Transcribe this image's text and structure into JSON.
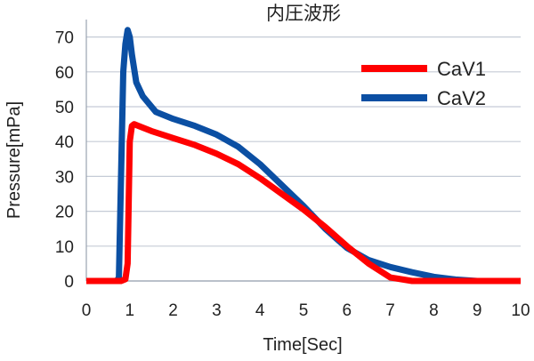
{
  "chart_data": {
    "type": "line",
    "title": "内圧波形",
    "xlabel": "Time[Sec]",
    "ylabel": "Pressure[mPa]",
    "xlim": [
      0,
      10
    ],
    "ylim": [
      0,
      75
    ],
    "x_ticks": [
      "0",
      "1",
      "2",
      "3",
      "4",
      "5",
      "6",
      "7",
      "8",
      "9",
      "10"
    ],
    "y_ticks": [
      "0",
      "10",
      "20",
      "30",
      "40",
      "50",
      "60",
      "70"
    ],
    "grid": "horizontal",
    "legend_position": "top-right",
    "series": [
      {
        "name": "CaV1",
        "color": "#ff0000",
        "x": [
          0,
          0.8,
          0.9,
          0.95,
          1.0,
          1.05,
          1.1,
          1.2,
          1.5,
          2,
          2.5,
          3,
          3.5,
          4,
          4.5,
          5,
          5.5,
          6,
          6.5,
          7,
          7.5,
          8,
          8.5,
          9,
          10
        ],
        "y": [
          0,
          0,
          0.5,
          5,
          40,
          44.5,
          45,
          44.5,
          43,
          41,
          39,
          36.5,
          33.5,
          29.5,
          25,
          20.5,
          15.5,
          10,
          5,
          1,
          0,
          0,
          0,
          0,
          0
        ]
      },
      {
        "name": "CaV2",
        "color": "#0b4fa3",
        "x": [
          0,
          0.7,
          0.75,
          0.8,
          0.85,
          0.9,
          0.95,
          1.0,
          1.05,
          1.15,
          1.3,
          1.6,
          2,
          2.5,
          3,
          3.5,
          4,
          4.5,
          5,
          5.5,
          6,
          6.5,
          7,
          7.5,
          8,
          8.5,
          9,
          10
        ],
        "y": [
          0,
          0,
          1,
          30,
          60,
          68,
          72,
          70,
          65,
          57,
          53,
          48.5,
          46.5,
          44.5,
          42,
          38.5,
          33.5,
          27.5,
          21.5,
          15,
          9.5,
          6,
          4,
          2.5,
          1.2,
          0.4,
          0,
          0
        ]
      }
    ]
  }
}
